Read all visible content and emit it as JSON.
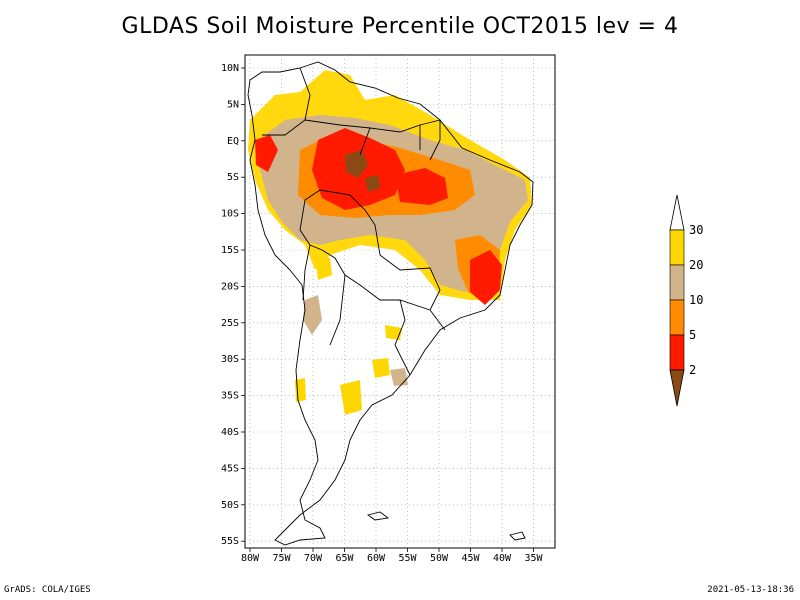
{
  "title": "GLDAS Soil Moisture Percentile OCT2015 lev = 4",
  "footer": {
    "left": "GrADS: COLA/IGES",
    "right": "2021-05-13-18:36"
  },
  "axes": {
    "lat_labels": [
      "10N",
      "5N",
      "EQ",
      "5S",
      "10S",
      "15S",
      "20S",
      "25S",
      "30S",
      "35S",
      "40S",
      "45S",
      "50S",
      "55S"
    ],
    "lon_labels": [
      "80W",
      "75W",
      "70W",
      "65W",
      "60W",
      "55W",
      "50W",
      "45W",
      "40W",
      "35W"
    ]
  },
  "colorbar": {
    "levels": [
      "2",
      "5",
      "10",
      "20",
      "30"
    ],
    "colors": {
      "below_2": "#8b4a14",
      "2_5": "#ff1a00",
      "5_10": "#ff8c00",
      "10_20": "#d2b48c",
      "20_30": "#ffd700",
      "above_30": "#ffffff"
    }
  }
}
